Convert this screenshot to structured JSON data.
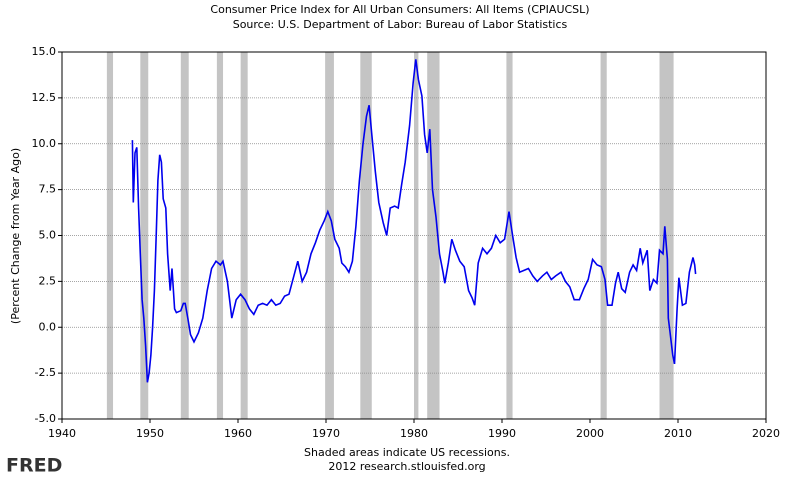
{
  "chart_data": {
    "type": "line",
    "title": "Consumer Price Index for All Urban Consumers: All Items (CPIAUCSL)",
    "subtitle": "Source: U.S. Department of Labor: Bureau of Labor Statistics",
    "y_label": "(Percent Change from Year Ago)",
    "footnote": "Shaded areas indicate US recessions.",
    "credit": "2012 research.stlouisfed.org",
    "logo": "FRED",
    "xlim": [
      1940,
      2020
    ],
    "xticks": [
      1940,
      1950,
      1960,
      1970,
      1980,
      1990,
      2000,
      2010,
      2020
    ],
    "ylim": [
      -5,
      15
    ],
    "yticks": [
      {
        "value": -5,
        "label": "-5.0"
      },
      {
        "value": -2.5,
        "label": "-2.5"
      },
      {
        "value": 0,
        "label": "0.0"
      },
      {
        "value": 2.5,
        "label": "2.5"
      },
      {
        "value": 5,
        "label": "5.0"
      },
      {
        "value": 7.5,
        "label": "7.5"
      },
      {
        "value": 10,
        "label": "10.0"
      },
      {
        "value": 12.5,
        "label": "12.5"
      },
      {
        "value": 15,
        "label": "15.0"
      }
    ],
    "grid": true,
    "recession_color": "#c4c4c4",
    "recessions": [
      [
        1945.1,
        1945.8
      ],
      [
        1948.9,
        1949.8
      ],
      [
        1953.5,
        1954.4
      ],
      [
        1957.6,
        1958.3
      ],
      [
        1960.3,
        1961.1
      ],
      [
        1969.9,
        1970.9
      ],
      [
        1973.9,
        1975.2
      ],
      [
        1980.0,
        1980.5
      ],
      [
        1981.5,
        1982.9
      ],
      [
        1990.5,
        1991.2
      ],
      [
        2001.2,
        2001.9
      ],
      [
        2007.9,
        2009.5
      ]
    ],
    "series": [
      {
        "name": "CPIAUCSL",
        "color": "#0000ee",
        "x": [
          1948.0,
          1948.1,
          1948.3,
          1948.5,
          1948.7,
          1948.9,
          1949.1,
          1949.3,
          1949.5,
          1949.7,
          1949.9,
          1950.1,
          1950.3,
          1950.5,
          1950.7,
          1950.9,
          1951.1,
          1951.3,
          1951.5,
          1951.8,
          1952.0,
          1952.3,
          1952.5,
          1952.8,
          1953.0,
          1953.5,
          1953.8,
          1954.0,
          1954.3,
          1954.6,
          1955.0,
          1955.5,
          1956.0,
          1956.5,
          1957.0,
          1957.5,
          1958.0,
          1958.3,
          1958.8,
          1959.3,
          1959.8,
          1960.3,
          1960.8,
          1961.3,
          1961.8,
          1962.3,
          1962.8,
          1963.3,
          1963.8,
          1964.3,
          1964.8,
          1965.3,
          1965.8,
          1966.3,
          1966.8,
          1967.3,
          1967.8,
          1968.3,
          1968.8,
          1969.3,
          1969.8,
          1970.2,
          1970.6,
          1971.0,
          1971.5,
          1971.8,
          1972.2,
          1972.6,
          1973.0,
          1973.4,
          1973.8,
          1974.2,
          1974.6,
          1974.9,
          1975.2,
          1975.6,
          1976.0,
          1976.5,
          1976.9,
          1977.3,
          1977.8,
          1978.2,
          1978.6,
          1979.0,
          1979.5,
          1979.9,
          1980.2,
          1980.5,
          1980.9,
          1981.2,
          1981.5,
          1981.8,
          1982.1,
          1982.5,
          1982.9,
          1983.3,
          1983.5,
          1983.9,
          1984.3,
          1984.7,
          1985.2,
          1985.7,
          1986.2,
          1986.6,
          1986.9,
          1987.3,
          1987.8,
          1988.3,
          1988.8,
          1989.3,
          1989.8,
          1990.3,
          1990.8,
          1991.2,
          1991.6,
          1992.0,
          1992.5,
          1993.0,
          1993.5,
          1994.0,
          1994.6,
          1995.1,
          1995.6,
          1996.1,
          1996.7,
          1997.2,
          1997.7,
          1998.2,
          1998.8,
          1999.3,
          1999.8,
          2000.3,
          2000.8,
          2001.3,
          2001.7,
          2002.0,
          2002.5,
          2002.9,
          2003.2,
          2003.6,
          2004.0,
          2004.5,
          2004.9,
          2005.3,
          2005.7,
          2006.0,
          2006.5,
          2006.8,
          2007.2,
          2007.6,
          2007.9,
          2008.3,
          2008.5,
          2008.8,
          2008.9,
          2009.1,
          2009.4,
          2009.6,
          2009.9,
          2010.1,
          2010.5,
          2010.9,
          2011.3,
          2011.7,
          2011.9,
          2012.0
        ],
        "values": [
          10.2,
          6.8,
          9.5,
          9.8,
          6.5,
          4.0,
          1.5,
          0.5,
          -1.0,
          -3.0,
          -2.5,
          -1.5,
          0.0,
          2.0,
          5.0,
          8.0,
          9.4,
          9.0,
          7.0,
          6.5,
          4.0,
          2.0,
          3.2,
          1.0,
          0.8,
          0.9,
          1.3,
          1.3,
          0.5,
          -0.4,
          -0.8,
          -0.3,
          0.5,
          2.0,
          3.2,
          3.6,
          3.4,
          3.6,
          2.5,
          0.5,
          1.5,
          1.8,
          1.5,
          1.0,
          0.7,
          1.2,
          1.3,
          1.2,
          1.5,
          1.2,
          1.3,
          1.7,
          1.8,
          2.7,
          3.6,
          2.5,
          3.0,
          4.0,
          4.6,
          5.3,
          5.8,
          6.3,
          5.8,
          4.8,
          4.3,
          3.5,
          3.3,
          3.0,
          3.6,
          5.5,
          8.0,
          10.0,
          11.5,
          12.1,
          10.5,
          8.5,
          6.8,
          5.7,
          5.0,
          6.5,
          6.6,
          6.5,
          7.8,
          9.0,
          11.0,
          13.3,
          14.6,
          13.5,
          12.6,
          10.5,
          9.5,
          10.8,
          7.5,
          6.0,
          4.0,
          3.0,
          2.4,
          3.5,
          4.8,
          4.2,
          3.6,
          3.3,
          2.0,
          1.6,
          1.2,
          3.5,
          4.3,
          4.0,
          4.3,
          5.0,
          4.6,
          4.8,
          6.3,
          5.0,
          3.8,
          3.0,
          3.1,
          3.2,
          2.8,
          2.5,
          2.8,
          3.0,
          2.6,
          2.8,
          3.0,
          2.5,
          2.2,
          1.5,
          1.5,
          2.1,
          2.6,
          3.7,
          3.4,
          3.3,
          2.6,
          1.2,
          1.2,
          2.4,
          3.0,
          2.1,
          1.9,
          3.0,
          3.4,
          3.1,
          4.3,
          3.5,
          4.2,
          2.0,
          2.6,
          2.4,
          4.2,
          4.0,
          5.5,
          3.7,
          0.5,
          -0.3,
          -1.5,
          -2.0,
          1.0,
          2.7,
          1.2,
          1.3,
          3.0,
          3.8,
          3.4,
          2.9
        ]
      }
    ]
  }
}
